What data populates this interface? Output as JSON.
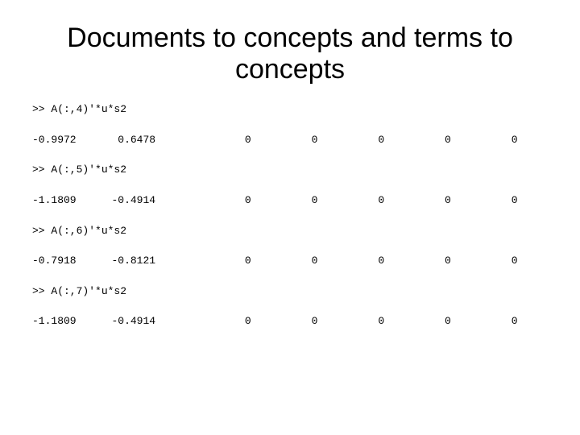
{
  "title": "Documents to concepts and terms to concepts",
  "blocks": [
    {
      "cmd": ">> A(:,4)'*u*s2",
      "a": "-0.9972",
      "b": " 0.6478",
      "z": [
        "0",
        "0",
        "0",
        "0",
        "0"
      ]
    },
    {
      "cmd": ">> A(:,5)'*u*s2",
      "a": "-1.1809",
      "b": "-0.4914",
      "z": [
        "0",
        "0",
        "0",
        "0",
        "0"
      ]
    },
    {
      "cmd": ">> A(:,6)'*u*s2",
      "a": "-0.7918",
      "b": "-0.8121",
      "z": [
        "0",
        "0",
        "0",
        "0",
        "0"
      ]
    },
    {
      "cmd": ">> A(:,7)'*u*s2",
      "a": "-1.1809",
      "b": "-0.4914",
      "z": [
        "0",
        "0",
        "0",
        "0",
        "0"
      ]
    }
  ]
}
